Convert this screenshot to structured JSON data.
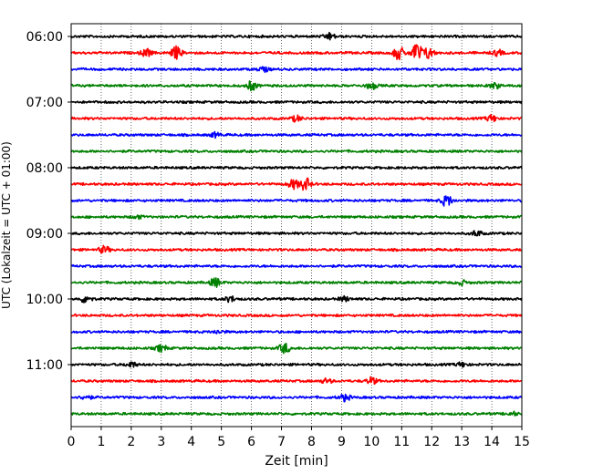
{
  "chart_data": {
    "type": "line",
    "title": "",
    "xlabel": "Zeit  [min]",
    "ylabel": "UTC (Lokalzeit = UTC + 01:00)",
    "xlim": [
      0,
      15
    ],
    "x_ticks": [
      "0",
      "1",
      "2",
      "3",
      "4",
      "5",
      "6",
      "7",
      "8",
      "9",
      "10",
      "11",
      "12",
      "13",
      "14",
      "15"
    ],
    "y_tick_labels": [
      "06:00",
      "07:00",
      "08:00",
      "09:00",
      "10:00",
      "11:00"
    ],
    "grid": "vertical dotted lines at every minute",
    "trace_interval_minutes": 15,
    "colors_cycle": [
      "#000000",
      "#ff0000",
      "#0000ff",
      "#008000"
    ],
    "traces": [
      {
        "start": "06:00",
        "color": "#000000",
        "events": [
          {
            "t": 8.6,
            "amp": 0.6
          }
        ]
      },
      {
        "start": "06:15",
        "color": "#ff0000",
        "events": [
          {
            "t": 2.5,
            "amp": 0.7
          },
          {
            "t": 3.5,
            "amp": 1.1
          },
          {
            "t": 10.9,
            "amp": 1.2
          },
          {
            "t": 11.5,
            "amp": 1.8
          },
          {
            "t": 11.9,
            "amp": 1.0
          },
          {
            "t": 14.2,
            "amp": 0.5
          }
        ]
      },
      {
        "start": "06:30",
        "color": "#0000ff",
        "events": [
          {
            "t": 6.4,
            "amp": 0.4
          }
        ]
      },
      {
        "start": "06:45",
        "color": "#008000",
        "events": [
          {
            "t": 6.0,
            "amp": 0.8
          },
          {
            "t": 10.0,
            "amp": 0.6
          },
          {
            "t": 14.1,
            "amp": 0.5
          }
        ]
      },
      {
        "start": "07:00",
        "color": "#000000",
        "events": []
      },
      {
        "start": "07:15",
        "color": "#ff0000",
        "events": [
          {
            "t": 7.5,
            "amp": 0.5
          },
          {
            "t": 14.0,
            "amp": 0.6
          }
        ]
      },
      {
        "start": "07:30",
        "color": "#0000ff",
        "events": [
          {
            "t": 4.8,
            "amp": 0.4
          }
        ]
      },
      {
        "start": "07:45",
        "color": "#008000",
        "events": []
      },
      {
        "start": "08:00",
        "color": "#000000",
        "events": []
      },
      {
        "start": "08:15",
        "color": "#ff0000",
        "events": [
          {
            "t": 7.4,
            "amp": 0.8
          },
          {
            "t": 7.8,
            "amp": 1.1
          }
        ]
      },
      {
        "start": "08:30",
        "color": "#0000ff",
        "events": [
          {
            "t": 12.5,
            "amp": 1.0
          }
        ]
      },
      {
        "start": "08:45",
        "color": "#008000",
        "events": [
          {
            "t": 2.2,
            "amp": 0.3
          }
        ]
      },
      {
        "start": "09:00",
        "color": "#000000",
        "events": [
          {
            "t": 13.5,
            "amp": 0.5
          }
        ]
      },
      {
        "start": "09:15",
        "color": "#ff0000",
        "events": [
          {
            "t": 1.1,
            "amp": 0.6
          }
        ]
      },
      {
        "start": "09:30",
        "color": "#0000ff",
        "events": []
      },
      {
        "start": "09:45",
        "color": "#008000",
        "events": [
          {
            "t": 4.8,
            "amp": 0.8
          },
          {
            "t": 13.0,
            "amp": 0.4
          }
        ]
      },
      {
        "start": "10:00",
        "color": "#000000",
        "events": [
          {
            "t": 0.5,
            "amp": 0.7
          },
          {
            "t": 5.3,
            "amp": 0.5
          },
          {
            "t": 9.1,
            "amp": 0.4
          }
        ]
      },
      {
        "start": "10:15",
        "color": "#ff0000",
        "events": []
      },
      {
        "start": "10:30",
        "color": "#0000ff",
        "events": [
          {
            "t": 4.9,
            "amp": 0.3
          }
        ]
      },
      {
        "start": "10:45",
        "color": "#008000",
        "events": [
          {
            "t": 3.0,
            "amp": 0.6
          },
          {
            "t": 7.1,
            "amp": 0.9
          }
        ]
      },
      {
        "start": "11:00",
        "color": "#000000",
        "events": [
          {
            "t": 2.0,
            "amp": 0.5
          },
          {
            "t": 13.0,
            "amp": 0.4
          }
        ]
      },
      {
        "start": "11:15",
        "color": "#ff0000",
        "events": [
          {
            "t": 8.5,
            "amp": 0.4
          },
          {
            "t": 10.0,
            "amp": 0.6
          }
        ]
      },
      {
        "start": "11:30",
        "color": "#0000ff",
        "events": [
          {
            "t": 0.5,
            "amp": 0.4
          },
          {
            "t": 9.1,
            "amp": 0.6
          }
        ]
      },
      {
        "start": "11:45",
        "color": "#008000",
        "events": [
          {
            "t": 14.7,
            "amp": 0.3
          }
        ]
      }
    ]
  }
}
